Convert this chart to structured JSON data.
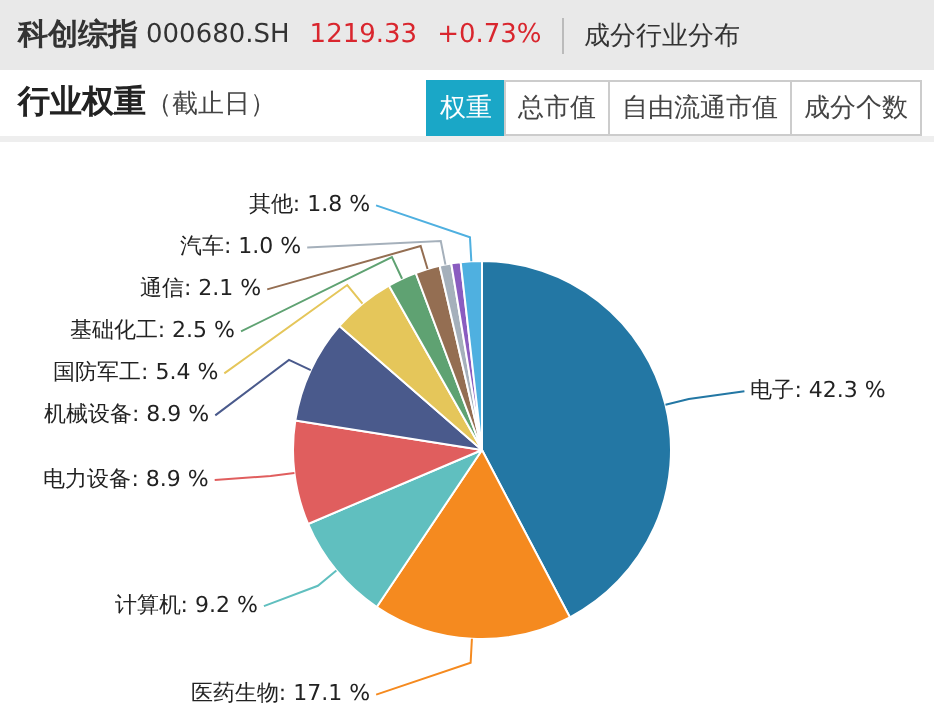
{
  "chart_data": {
    "type": "pie",
    "title": "行业权重",
    "subtitle": "（截止日）",
    "annotations": [
      "科创综指",
      "000680.SH",
      "1219.33",
      "+0.73%",
      "成分行业分布",
      "权重",
      "总市值",
      "自由流通市值",
      "成分个数"
    ],
    "categories": [
      "电子",
      "医药生物",
      "计算机",
      "电力设备",
      "机械设备",
      "国防军工",
      "基础化工",
      "通信",
      "汽车",
      null,
      "其他"
    ],
    "values": [
      42.3,
      17.1,
      9.2,
      8.9,
      8.9,
      5.4,
      2.5,
      2.1,
      1.0,
      0.8,
      1.8
    ],
    "colors": [
      "#2377a4",
      "#f58a1f",
      "#60bfbf",
      "#e05e5e",
      "#4a5a8c",
      "#e5c65a",
      "#5fa272",
      "#946e52",
      "#a5b0bb",
      "#8a5cc0",
      "#4fb0e0"
    ],
    "value_labels": [
      "42.3 %",
      "17.1 %",
      "9.2 %",
      "8.9 %",
      "8.9 %",
      "5.4 %",
      "2.5 %",
      "2.1 %",
      "1.0 %",
      null,
      "1.8 %"
    ],
    "legend": false
  }
}
